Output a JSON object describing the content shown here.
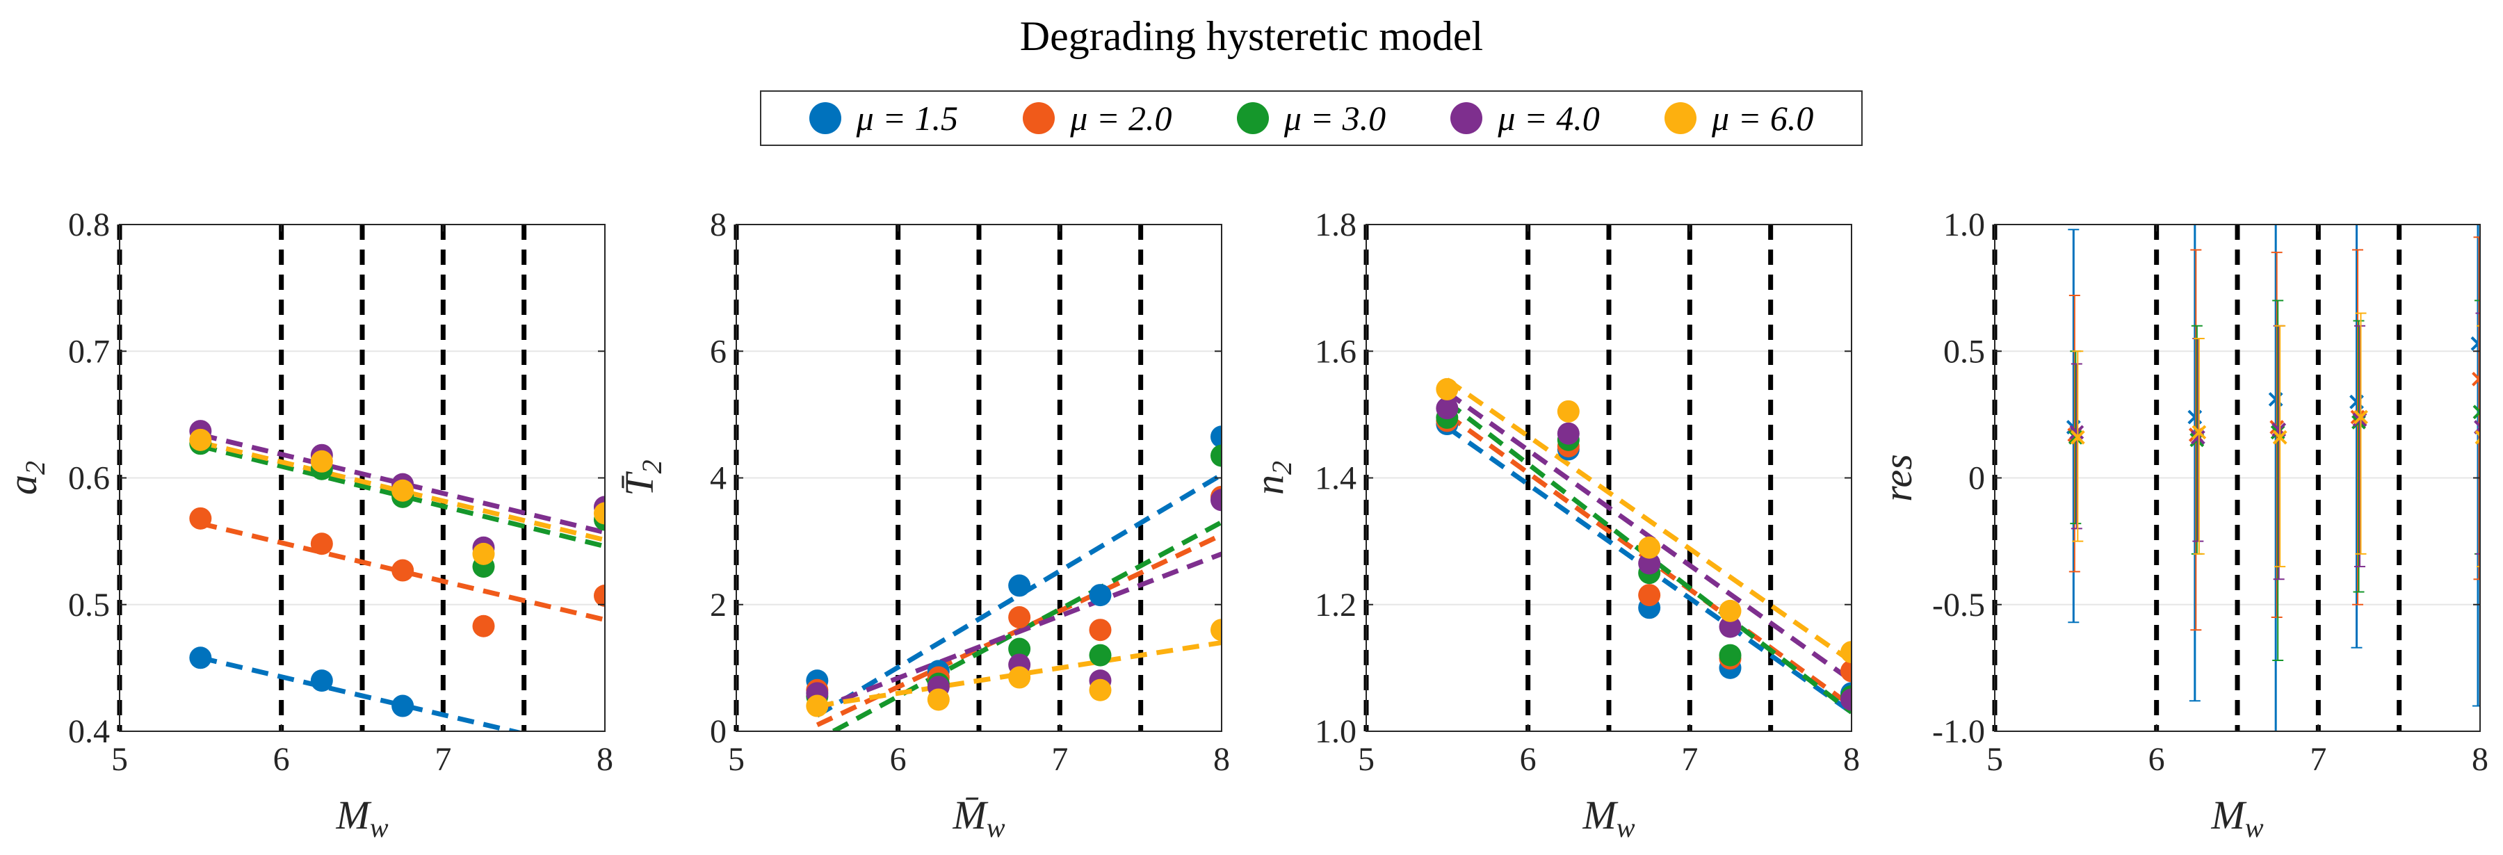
{
  "title": "Degrading hysteretic model",
  "legend": [
    {
      "label": "μ = 1.5",
      "color": "#0072BD"
    },
    {
      "label": "μ = 2.0",
      "color": "#F05A1A"
    },
    {
      "label": "μ = 3.0",
      "color": "#15972B"
    },
    {
      "label": "μ = 4.0",
      "color": "#7E2F8E"
    },
    {
      "label": "μ = 6.0",
      "color": "#FDB00F"
    }
  ],
  "chart_data": [
    {
      "type": "scatter",
      "ylabel_main": "a",
      "ylabel_sub": "2",
      "xlabel_main": "M",
      "xlabel_sub": "w",
      "xlim": [
        5,
        8
      ],
      "ylim": [
        0.4,
        0.8
      ],
      "xticks": [
        "5",
        "6",
        "7",
        "8"
      ],
      "xtick_values": [
        5,
        6,
        7,
        8
      ],
      "yticks": [
        "0.4",
        "0.5",
        "0.6",
        "0.7",
        "0.8"
      ],
      "ytick_values": [
        0.4,
        0.5,
        0.6,
        0.7,
        0.8
      ],
      "ygrid": [
        0.5,
        0.6,
        0.7
      ],
      "vlines": [
        5,
        6,
        6.5,
        7,
        7.5
      ],
      "x": [
        5.5,
        6.25,
        6.75,
        7.25,
        8.0
      ],
      "series": [
        {
          "values": [
            0.458,
            0.44,
            0.42,
            null,
            null
          ],
          "fit": [
            [
              5.5,
              0.458
            ],
            [
              7.5,
              0.398
            ]
          ]
        },
        {
          "values": [
            0.568,
            0.548,
            0.527,
            0.483,
            0.507
          ],
          "fit": [
            [
              5.5,
              0.564
            ],
            [
              8.0,
              0.488
            ]
          ]
        },
        {
          "values": [
            0.627,
            0.607,
            0.585,
            0.53,
            0.567
          ],
          "fit": [
            [
              5.5,
              0.625
            ],
            [
              8.0,
              0.546
            ]
          ]
        },
        {
          "values": [
            0.637,
            0.618,
            0.595,
            0.545,
            0.577
          ],
          "fit": [
            [
              5.5,
              0.634
            ],
            [
              8.0,
              0.557
            ]
          ]
        },
        {
          "values": [
            0.63,
            0.613,
            0.59,
            0.54,
            0.572
          ],
          "fit": [
            [
              5.5,
              0.628
            ],
            [
              8.0,
              0.551
            ]
          ]
        }
      ]
    },
    {
      "type": "scatter",
      "ylabel_main": "T̄",
      "ylabel_sub": "2",
      "xlabel_main": "M̄",
      "xlabel_sub": "w",
      "xlim": [
        5,
        8
      ],
      "ylim": [
        0,
        8
      ],
      "xticks": [
        "5",
        "6",
        "7",
        "8"
      ],
      "xtick_values": [
        5,
        6,
        7,
        8
      ],
      "yticks": [
        "0",
        "2",
        "4",
        "6",
        "8"
      ],
      "ytick_values": [
        0,
        2,
        4,
        6,
        8
      ],
      "ygrid": [
        2,
        4,
        6
      ],
      "vlines": [
        5,
        6,
        6.5,
        7,
        7.5
      ],
      "x": [
        5.5,
        6.25,
        6.75,
        7.25,
        8.0
      ],
      "series": [
        {
          "values": [
            0.8,
            0.95,
            2.3,
            2.15,
            4.65
          ],
          "fit": [
            [
              5.5,
              0.25
            ],
            [
              8.0,
              4.05
            ]
          ]
        },
        {
          "values": [
            0.65,
            0.85,
            1.8,
            1.6,
            3.7
          ],
          "fit": [
            [
              5.5,
              0.1
            ],
            [
              8.0,
              3.1
            ]
          ]
        },
        {
          "values": [
            0.55,
            0.75,
            1.3,
            1.2,
            4.35
          ],
          "fit": [
            [
              5.6,
              0.0
            ],
            [
              8.0,
              3.3
            ]
          ]
        },
        {
          "values": [
            0.6,
            0.7,
            1.05,
            0.8,
            3.65
          ],
          "fit": [
            [
              5.5,
              0.35
            ],
            [
              8.0,
              2.8
            ]
          ]
        },
        {
          "values": [
            0.4,
            0.5,
            0.85,
            0.65,
            1.6
          ],
          "fit": [
            [
              5.5,
              0.4
            ],
            [
              8.0,
              1.4
            ]
          ]
        }
      ]
    },
    {
      "type": "scatter",
      "ylabel_main": "n",
      "ylabel_sub": "2",
      "xlabel_main": "M",
      "xlabel_sub": "w",
      "xlim": [
        5,
        8
      ],
      "ylim": [
        1.0,
        1.8
      ],
      "xticks": [
        "5",
        "6",
        "7",
        "8"
      ],
      "xtick_values": [
        5,
        6,
        7,
        8
      ],
      "yticks": [
        "1.0",
        "1.2",
        "1.4",
        "1.6",
        "1.8"
      ],
      "ytick_values": [
        1.0,
        1.2,
        1.4,
        1.6,
        1.8
      ],
      "ygrid": [
        1.2,
        1.4,
        1.6
      ],
      "vlines": [
        5,
        6,
        6.5,
        7,
        7.5
      ],
      "x": [
        5.5,
        6.25,
        6.75,
        7.25,
        8.0
      ],
      "series": [
        {
          "values": [
            1.485,
            1.445,
            1.195,
            1.1,
            1.06
          ],
          "fit": [
            [
              5.5,
              1.48
            ],
            [
              8.0,
              1.03
            ]
          ]
        },
        {
          "values": [
            1.49,
            1.45,
            1.215,
            1.115,
            1.095
          ],
          "fit": [
            [
              5.5,
              1.5
            ],
            [
              8.0,
              1.04
            ]
          ]
        },
        {
          "values": [
            1.495,
            1.46,
            1.25,
            1.12,
            1.055
          ],
          "fit": [
            [
              5.5,
              1.52
            ],
            [
              8.0,
              1.03
            ]
          ]
        },
        {
          "values": [
            1.51,
            1.47,
            1.265,
            1.165,
            1.05
          ],
          "fit": [
            [
              5.5,
              1.535
            ],
            [
              8.0,
              1.08
            ]
          ]
        },
        {
          "values": [
            1.54,
            1.505,
            1.29,
            1.19,
            1.125
          ],
          "fit": [
            [
              5.5,
              1.555
            ],
            [
              8.0,
              1.11
            ]
          ]
        }
      ]
    },
    {
      "type": "errorbar",
      "ylabel_main": "res",
      "ylabel_sub": "",
      "xlabel_main": "M",
      "xlabel_sub": "w",
      "xlim": [
        5,
        8
      ],
      "ylim": [
        -1.0,
        1.0
      ],
      "xticks": [
        "5",
        "6",
        "7",
        "8"
      ],
      "xtick_values": [
        5,
        6,
        7,
        8
      ],
      "yticks": [
        "-1.0",
        "-0.5",
        "0",
        "0.5",
        "1.0"
      ],
      "ytick_values": [
        -1.0,
        -0.5,
        0,
        0.5,
        1.0
      ],
      "ygrid": [
        -0.5,
        0,
        0.5
      ],
      "vlines": [
        5,
        6,
        6.5,
        7,
        7.5
      ],
      "series": [
        {
          "points": [
            [
              5.5,
              0.2
            ],
            [
              6.25,
              0.24
            ],
            [
              6.75,
              0.31
            ],
            [
              7.25,
              0.3
            ],
            [
              8.0,
              0.53
            ]
          ],
          "err": [
            [
              -0.57,
              0.98
            ],
            [
              -0.88,
              1.0
            ],
            [
              -1.0,
              1.0
            ],
            [
              -0.67,
              1.0
            ],
            [
              -0.9,
              1.0
            ]
          ]
        },
        {
          "points": [
            [
              5.5,
              0.17
            ],
            [
              6.25,
              0.17
            ],
            [
              6.75,
              0.2
            ],
            [
              7.25,
              0.24
            ],
            [
              8.0,
              0.39
            ]
          ],
          "err": [
            [
              -0.37,
              0.72
            ],
            [
              -0.6,
              0.9
            ],
            [
              -0.55,
              0.89
            ],
            [
              -0.5,
              0.9
            ],
            [
              -0.4,
              0.95
            ]
          ]
        },
        {
          "points": [
            [
              5.5,
              0.16
            ],
            [
              6.25,
              0.15
            ],
            [
              6.75,
              0.18
            ],
            [
              7.25,
              0.22
            ],
            [
              8.0,
              0.26
            ]
          ],
          "err": [
            [
              -0.18,
              0.5
            ],
            [
              -0.3,
              0.6
            ],
            [
              -0.72,
              0.7
            ],
            [
              -0.45,
              0.62
            ],
            [
              -0.3,
              0.7
            ]
          ]
        },
        {
          "points": [
            [
              5.5,
              0.18
            ],
            [
              6.25,
              0.16
            ],
            [
              6.75,
              0.19
            ],
            [
              7.25,
              0.23
            ],
            [
              8.0,
              0.2
            ]
          ],
          "err": [
            [
              -0.2,
              0.45
            ],
            [
              -0.25,
              0.55
            ],
            [
              -0.4,
              0.6
            ],
            [
              -0.35,
              0.6
            ],
            [
              -0.3,
              0.65
            ]
          ]
        },
        {
          "points": [
            [
              5.5,
              0.16
            ],
            [
              6.25,
              0.18
            ],
            [
              6.75,
              0.16
            ],
            [
              7.25,
              0.24
            ],
            [
              8.0,
              0.16
            ]
          ],
          "err": [
            [
              -0.25,
              0.5
            ],
            [
              -0.3,
              0.55
            ],
            [
              -0.35,
              0.6
            ],
            [
              -0.3,
              0.65
            ],
            [
              -0.35,
              0.6
            ]
          ]
        }
      ]
    }
  ]
}
